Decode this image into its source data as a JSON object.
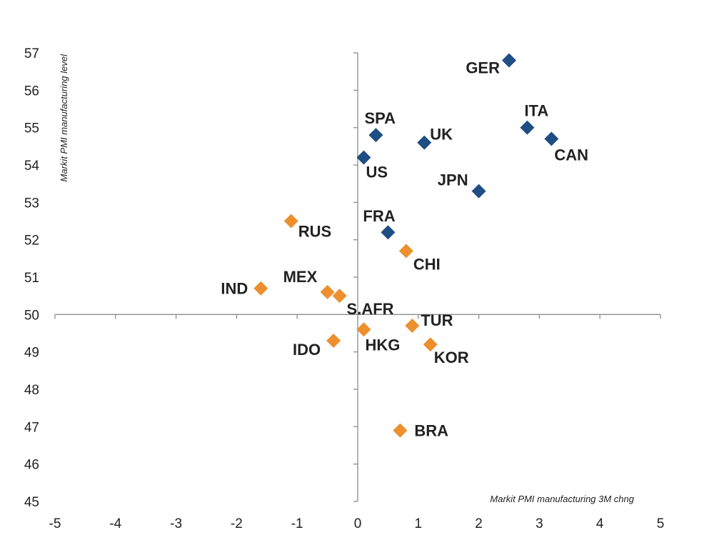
{
  "chart_data": {
    "type": "scatter",
    "title": "",
    "xlabel": "Markit PMI manufacturing 3M chng",
    "ylabel": "Markit PMI manufacturing level",
    "xlim": [
      -5,
      5
    ],
    "ylim": [
      45,
      57
    ],
    "x_ticks": [
      "-5",
      "-4",
      "-3",
      "-2",
      "-1",
      "0",
      "1",
      "2",
      "3",
      "4",
      "5"
    ],
    "y_ticks": [
      "45",
      "46",
      "47",
      "48",
      "49",
      "50",
      "51",
      "52",
      "53",
      "54",
      "55",
      "56",
      "57"
    ],
    "grid": false,
    "legend": "none",
    "colors": {
      "blue": "#1f4e85",
      "orange": "#ed8f2d"
    },
    "points": [
      {
        "label": "GER",
        "x": 2.5,
        "y": 56.8,
        "color": "blue"
      },
      {
        "label": "ITA",
        "x": 2.8,
        "y": 55.0,
        "color": "blue"
      },
      {
        "label": "CAN",
        "x": 3.2,
        "y": 54.7,
        "color": "blue"
      },
      {
        "label": "SPA",
        "x": 0.3,
        "y": 54.8,
        "color": "blue"
      },
      {
        "label": "UK",
        "x": 1.1,
        "y": 54.6,
        "color": "blue"
      },
      {
        "label": "US",
        "x": 0.1,
        "y": 54.2,
        "color": "blue"
      },
      {
        "label": "JPN",
        "x": 2.0,
        "y": 53.3,
        "color": "blue"
      },
      {
        "label": "FRA",
        "x": 0.5,
        "y": 52.2,
        "color": "blue"
      },
      {
        "label": "RUS",
        "x": -1.1,
        "y": 52.5,
        "color": "orange"
      },
      {
        "label": "CHI",
        "x": 0.8,
        "y": 51.7,
        "color": "orange"
      },
      {
        "label": "IND",
        "x": -1.6,
        "y": 50.7,
        "color": "orange"
      },
      {
        "label": "MEX",
        "x": -0.5,
        "y": 50.6,
        "color": "orange"
      },
      {
        "label": "S.AFR",
        "x": -0.3,
        "y": 50.5,
        "color": "orange"
      },
      {
        "label": "TUR",
        "x": 0.9,
        "y": 49.7,
        "color": "orange"
      },
      {
        "label": "HKG",
        "x": 0.1,
        "y": 49.6,
        "color": "orange"
      },
      {
        "label": "IDO",
        "x": -0.4,
        "y": 49.3,
        "color": "orange"
      },
      {
        "label": "KOR",
        "x": 1.2,
        "y": 49.2,
        "color": "orange"
      },
      {
        "label": "BRA",
        "x": 0.7,
        "y": 46.9,
        "color": "orange"
      }
    ]
  }
}
